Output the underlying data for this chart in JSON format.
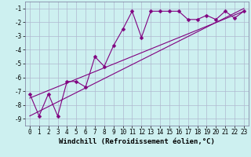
{
  "title": "",
  "xlabel": "Windchill (Refroidissement éolien,°C)",
  "bg_color": "#cdf0f0",
  "line_color": "#800080",
  "grid_color": "#b0b8d0",
  "xlim": [
    -0.5,
    23.5
  ],
  "ylim": [
    -9.5,
    -0.5
  ],
  "xticks": [
    0,
    1,
    2,
    3,
    4,
    5,
    6,
    7,
    8,
    9,
    10,
    11,
    12,
    13,
    14,
    15,
    16,
    17,
    18,
    19,
    20,
    21,
    22,
    23
  ],
  "yticks": [
    -9,
    -8,
    -7,
    -6,
    -5,
    -4,
    -3,
    -2,
    -1
  ],
  "line1_x": [
    0,
    1,
    2,
    3,
    4,
    5,
    6,
    7,
    8,
    9,
    10,
    11,
    12,
    13,
    14,
    15,
    16,
    17,
    18,
    19,
    20,
    21,
    22,
    23
  ],
  "line1_y": [
    -7.2,
    -8.8,
    -7.2,
    -8.8,
    -6.3,
    -6.3,
    -6.7,
    -4.5,
    -5.2,
    -3.7,
    -2.5,
    -1.2,
    -3.1,
    -1.2,
    -1.2,
    -1.2,
    -1.2,
    -1.8,
    -1.8,
    -1.5,
    -1.8,
    -1.2,
    -1.7,
    -1.2
  ],
  "line2_x": [
    0,
    23
  ],
  "line2_y": [
    -8.8,
    -1.0
  ],
  "line3_x": [
    0,
    23
  ],
  "line3_y": [
    -7.5,
    -1.2
  ],
  "markersize": 2.5,
  "linewidth": 0.8,
  "xlabel_fontsize": 6.5,
  "tick_fontsize": 5.5
}
